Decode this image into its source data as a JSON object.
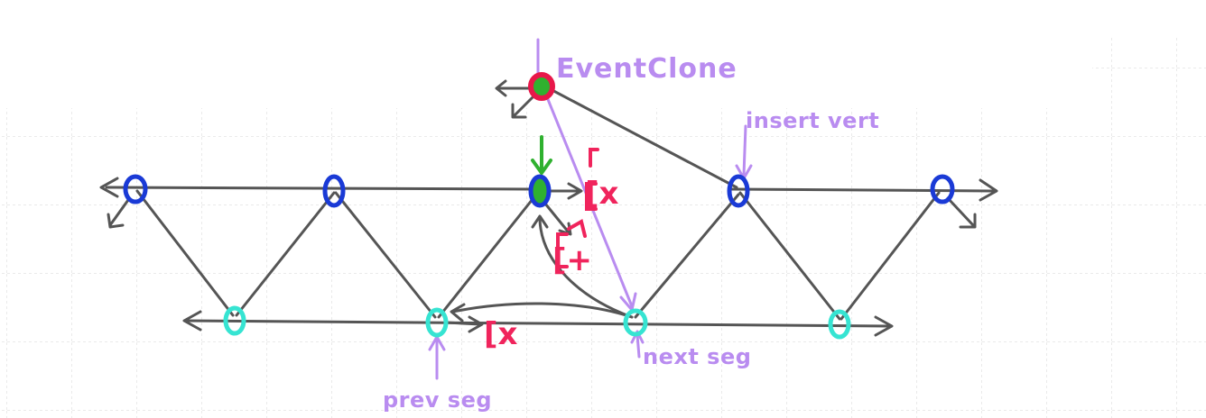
{
  "labels": {
    "event_clone": "EventClone",
    "insert_vert": "insert vert",
    "next_seg": "next seg",
    "prev_seg": "prev seg",
    "fix_top": "[x",
    "fix_plus": "[+",
    "fix_bottom": "[x"
  },
  "colors": {
    "grid": "#e3e3e3",
    "edge": "#555555",
    "top_vertex": "#1a3ad6",
    "bottom_vertex": "#36e4d2",
    "event_clone_vertex": "#e8174a",
    "current_vertex_fill": "#2fb12f",
    "annotation_purple": "#b98cf0",
    "annotation_red": "#f0245c"
  },
  "icons": {
    "down_arrow": "green-down-arrow-icon",
    "open_arrowhead": "arrowhead-icon"
  }
}
